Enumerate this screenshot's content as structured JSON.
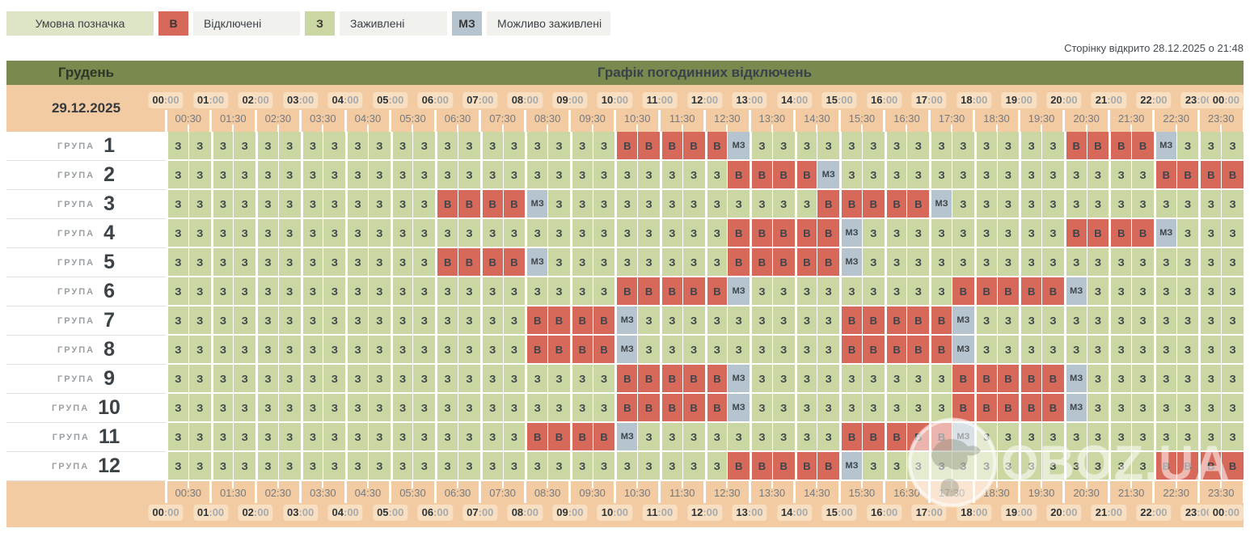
{
  "legend": {
    "title": "Умовна позначка",
    "items": [
      {
        "code": "В",
        "label": "Відключені",
        "state": "В"
      },
      {
        "code": "З",
        "label": "Заживлені",
        "state": "З"
      },
      {
        "code": "МЗ",
        "label": "Можливо заживлені",
        "state": "МЗ"
      }
    ]
  },
  "page_opened_note": "Сторінку відкрито 28.12.2025 о 21:48",
  "table": {
    "month": "Грудень",
    "title": "Графік погодинних відключень",
    "date": "29.12.2025",
    "group_label": "ГРУПА",
    "hours": [
      "00:00",
      "01:00",
      "02:00",
      "03:00",
      "04:00",
      "05:00",
      "06:00",
      "07:00",
      "08:00",
      "09:00",
      "10:00",
      "11:00",
      "12:00",
      "13:00",
      "14:00",
      "15:00",
      "16:00",
      "17:00",
      "18:00",
      "19:00",
      "20:00",
      "21:00",
      "22:00",
      "23:00",
      "00:00"
    ],
    "half_hours": [
      "00:30",
      "01:30",
      "02:30",
      "03:30",
      "04:30",
      "05:30",
      "06:30",
      "07:30",
      "08:30",
      "09:30",
      "10:30",
      "11:30",
      "12:30",
      "13:30",
      "14:30",
      "15:30",
      "16:30",
      "17:30",
      "18:30",
      "19:30",
      "20:30",
      "21:30",
      "22:30",
      "23:30"
    ],
    "groups": [
      {
        "number": "1",
        "runs": [
          [
            "З",
            20
          ],
          [
            "В",
            5
          ],
          [
            "МЗ",
            1
          ],
          [
            "З",
            14
          ],
          [
            "В",
            4
          ],
          [
            "МЗ",
            1
          ],
          [
            "З",
            3
          ]
        ]
      },
      {
        "number": "2",
        "runs": [
          [
            "З",
            25
          ],
          [
            "В",
            4
          ],
          [
            "МЗ",
            1
          ],
          [
            "З",
            14
          ],
          [
            "В",
            4
          ]
        ]
      },
      {
        "number": "3",
        "runs": [
          [
            "З",
            12
          ],
          [
            "В",
            4
          ],
          [
            "МЗ",
            1
          ],
          [
            "З",
            12
          ],
          [
            "В",
            5
          ],
          [
            "МЗ",
            1
          ],
          [
            "З",
            13
          ]
        ]
      },
      {
        "number": "4",
        "runs": [
          [
            "З",
            25
          ],
          [
            "В",
            5
          ],
          [
            "МЗ",
            1
          ],
          [
            "З",
            9
          ],
          [
            "В",
            4
          ],
          [
            "МЗ",
            1
          ],
          [
            "З",
            3
          ]
        ]
      },
      {
        "number": "5",
        "runs": [
          [
            "З",
            12
          ],
          [
            "В",
            4
          ],
          [
            "МЗ",
            1
          ],
          [
            "З",
            8
          ],
          [
            "В",
            5
          ],
          [
            "МЗ",
            1
          ],
          [
            "З",
            17
          ]
        ]
      },
      {
        "number": "6",
        "runs": [
          [
            "З",
            20
          ],
          [
            "В",
            5
          ],
          [
            "МЗ",
            1
          ],
          [
            "З",
            9
          ],
          [
            "В",
            5
          ],
          [
            "МЗ",
            1
          ],
          [
            "З",
            7
          ]
        ]
      },
      {
        "number": "7",
        "runs": [
          [
            "З",
            16
          ],
          [
            "В",
            4
          ],
          [
            "МЗ",
            1
          ],
          [
            "З",
            9
          ],
          [
            "В",
            5
          ],
          [
            "МЗ",
            1
          ],
          [
            "З",
            12
          ]
        ]
      },
      {
        "number": "8",
        "runs": [
          [
            "З",
            16
          ],
          [
            "В",
            4
          ],
          [
            "МЗ",
            1
          ],
          [
            "З",
            9
          ],
          [
            "В",
            5
          ],
          [
            "МЗ",
            1
          ],
          [
            "З",
            12
          ]
        ]
      },
      {
        "number": "9",
        "runs": [
          [
            "З",
            20
          ],
          [
            "В",
            5
          ],
          [
            "МЗ",
            1
          ],
          [
            "З",
            9
          ],
          [
            "В",
            5
          ],
          [
            "МЗ",
            1
          ],
          [
            "З",
            7
          ]
        ]
      },
      {
        "number": "10",
        "runs": [
          [
            "З",
            20
          ],
          [
            "В",
            5
          ],
          [
            "МЗ",
            1
          ],
          [
            "З",
            9
          ],
          [
            "В",
            5
          ],
          [
            "МЗ",
            1
          ],
          [
            "З",
            7
          ]
        ]
      },
      {
        "number": "11",
        "runs": [
          [
            "З",
            16
          ],
          [
            "В",
            4
          ],
          [
            "МЗ",
            1
          ],
          [
            "З",
            9
          ],
          [
            "В",
            5
          ],
          [
            "МЗ",
            1
          ],
          [
            "З",
            12
          ]
        ]
      },
      {
        "number": "12",
        "runs": [
          [
            "З",
            25
          ],
          [
            "В",
            5
          ],
          [
            "МЗ",
            1
          ],
          [
            "З",
            13
          ],
          [
            "В",
            4
          ]
        ]
      }
    ]
  },
  "states": {
    "З": "#cad7a2",
    "В": "#d7695a",
    "МЗ": "#b6c4cf"
  },
  "colors": {
    "header_olive": "#7a8a4e",
    "band_peach": "#f3cba3",
    "pill_bg": "#f8dfc1",
    "legend_title_bg": "#dee5c6",
    "legend_label_bg": "#f1f1ee",
    "text_dark": "#3b4246"
  },
  "watermark": {
    "text": "OBOZ.UA"
  }
}
